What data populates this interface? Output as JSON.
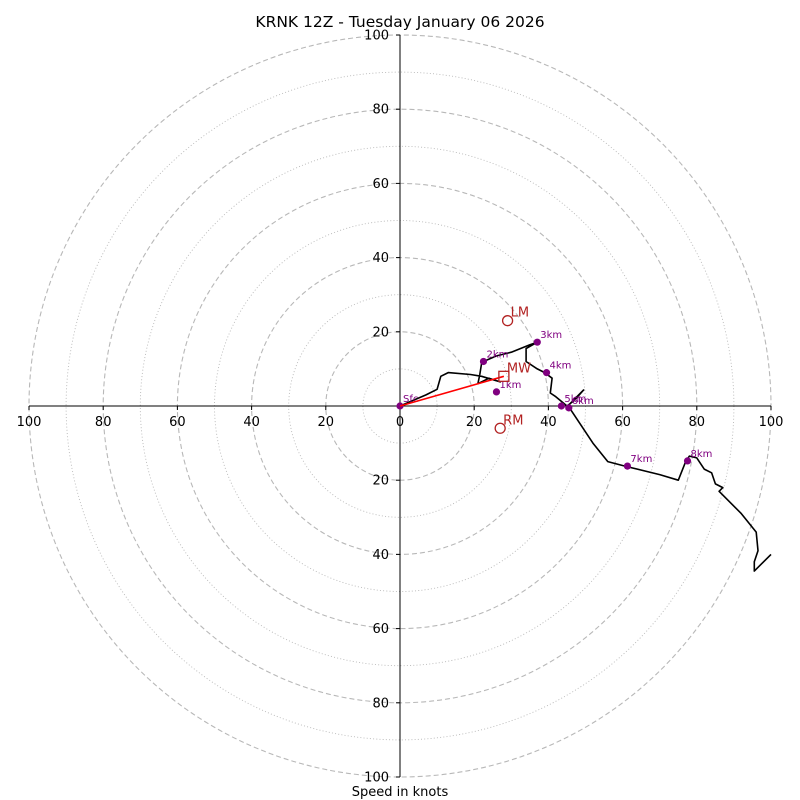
{
  "chart_data": {
    "type": "hodograph",
    "title": "KRNK 12Z - Tuesday January 06 2026",
    "xlabel": "Speed in knots",
    "rings": {
      "dashed": [
        20,
        40,
        60,
        80,
        100
      ],
      "dotted": [
        10,
        30,
        50,
        70,
        90
      ]
    },
    "axis_range": [
      -100,
      100
    ],
    "x_tick_labels": [
      {
        "value": -100,
        "label": "100"
      },
      {
        "value": -80,
        "label": "80"
      },
      {
        "value": -60,
        "label": "60"
      },
      {
        "value": -40,
        "label": "40"
      },
      {
        "value": -20,
        "label": "20"
      },
      {
        "value": 0,
        "label": "0"
      },
      {
        "value": 20,
        "label": "20"
      },
      {
        "value": 40,
        "label": "40"
      },
      {
        "value": 60,
        "label": "60"
      },
      {
        "value": 80,
        "label": "80"
      },
      {
        "value": 100,
        "label": "100"
      }
    ],
    "y_tick_labels": [
      {
        "value": 100,
        "label": "100"
      },
      {
        "value": 80,
        "label": "80"
      },
      {
        "value": 60,
        "label": "60"
      },
      {
        "value": 40,
        "label": "40"
      },
      {
        "value": 20,
        "label": "20"
      },
      {
        "value": -20,
        "label": "20"
      },
      {
        "value": -40,
        "label": "40"
      },
      {
        "value": -60,
        "label": "60"
      },
      {
        "value": -80,
        "label": "80"
      },
      {
        "value": -100,
        "label": "100"
      }
    ],
    "hodograph_trace": [
      [
        0,
        0
      ],
      [
        7,
        3
      ],
      [
        10,
        4.5
      ],
      [
        11,
        8
      ],
      [
        13,
        9
      ],
      [
        19,
        8.5
      ],
      [
        22,
        8
      ],
      [
        27,
        6.5
      ],
      [
        24,
        7.5
      ],
      [
        21,
        6
      ],
      [
        21.5,
        8.5
      ],
      [
        22,
        11.5
      ],
      [
        22.5,
        12
      ],
      [
        26,
        13.5
      ],
      [
        30,
        14.5
      ],
      [
        35,
        16.5
      ],
      [
        37,
        17.2
      ],
      [
        34,
        15.5
      ],
      [
        34,
        12
      ],
      [
        37,
        10
      ],
      [
        39,
        9
      ],
      [
        41,
        7.5
      ],
      [
        40.5,
        3.5
      ],
      [
        42,
        2.5
      ],
      [
        45,
        0
      ],
      [
        47,
        1.5
      ],
      [
        49.5,
        4.3
      ],
      [
        45.5,
        0.3
      ],
      [
        46,
        -1
      ],
      [
        48,
        -4
      ],
      [
        52,
        -10
      ],
      [
        56,
        -15
      ],
      [
        61,
        -16.3
      ],
      [
        70,
        -18.5
      ],
      [
        75,
        -20
      ],
      [
        77,
        -15
      ],
      [
        78,
        -13.5
      ],
      [
        80,
        -14
      ],
      [
        82,
        -17
      ],
      [
        84,
        -18
      ],
      [
        85,
        -21
      ],
      [
        87,
        -22
      ],
      [
        86,
        -23
      ],
      [
        92,
        -29
      ],
      [
        96,
        -34
      ],
      [
        96.5,
        -39
      ],
      [
        95.5,
        -42
      ],
      [
        95.5,
        -44.5
      ],
      [
        100,
        -40
      ]
    ],
    "height_markers": [
      {
        "label": "Sfc",
        "u": 0,
        "v": 0
      },
      {
        "label": "1km",
        "u": 26,
        "v": 3.8
      },
      {
        "label": "2km",
        "u": 22.5,
        "v": 12
      },
      {
        "label": "3km",
        "u": 37,
        "v": 17.2
      },
      {
        "label": "4km",
        "u": 39.5,
        "v": 9
      },
      {
        "label": "5km",
        "u": 43.5,
        "v": 0
      },
      {
        "label": "6km",
        "u": 45.5,
        "v": -0.5
      },
      {
        "label": "7km",
        "u": 61.3,
        "v": -16.2
      },
      {
        "label": "8km",
        "u": 77.5,
        "v": -14.8
      }
    ],
    "storm_motion": {
      "mean_wind": {
        "label": "MW",
        "u": 28,
        "v": 8
      },
      "left_mover": {
        "label": "LM",
        "u": 29,
        "v": 23
      },
      "right_mover": {
        "label": "RM",
        "u": 27,
        "v": -6
      }
    },
    "colors": {
      "trace": "#000000",
      "markers": "#800080",
      "motion": "#b22222",
      "shear_vector": "#ff0000",
      "grid": "#b8b8b8",
      "axes": "#000000"
    }
  }
}
